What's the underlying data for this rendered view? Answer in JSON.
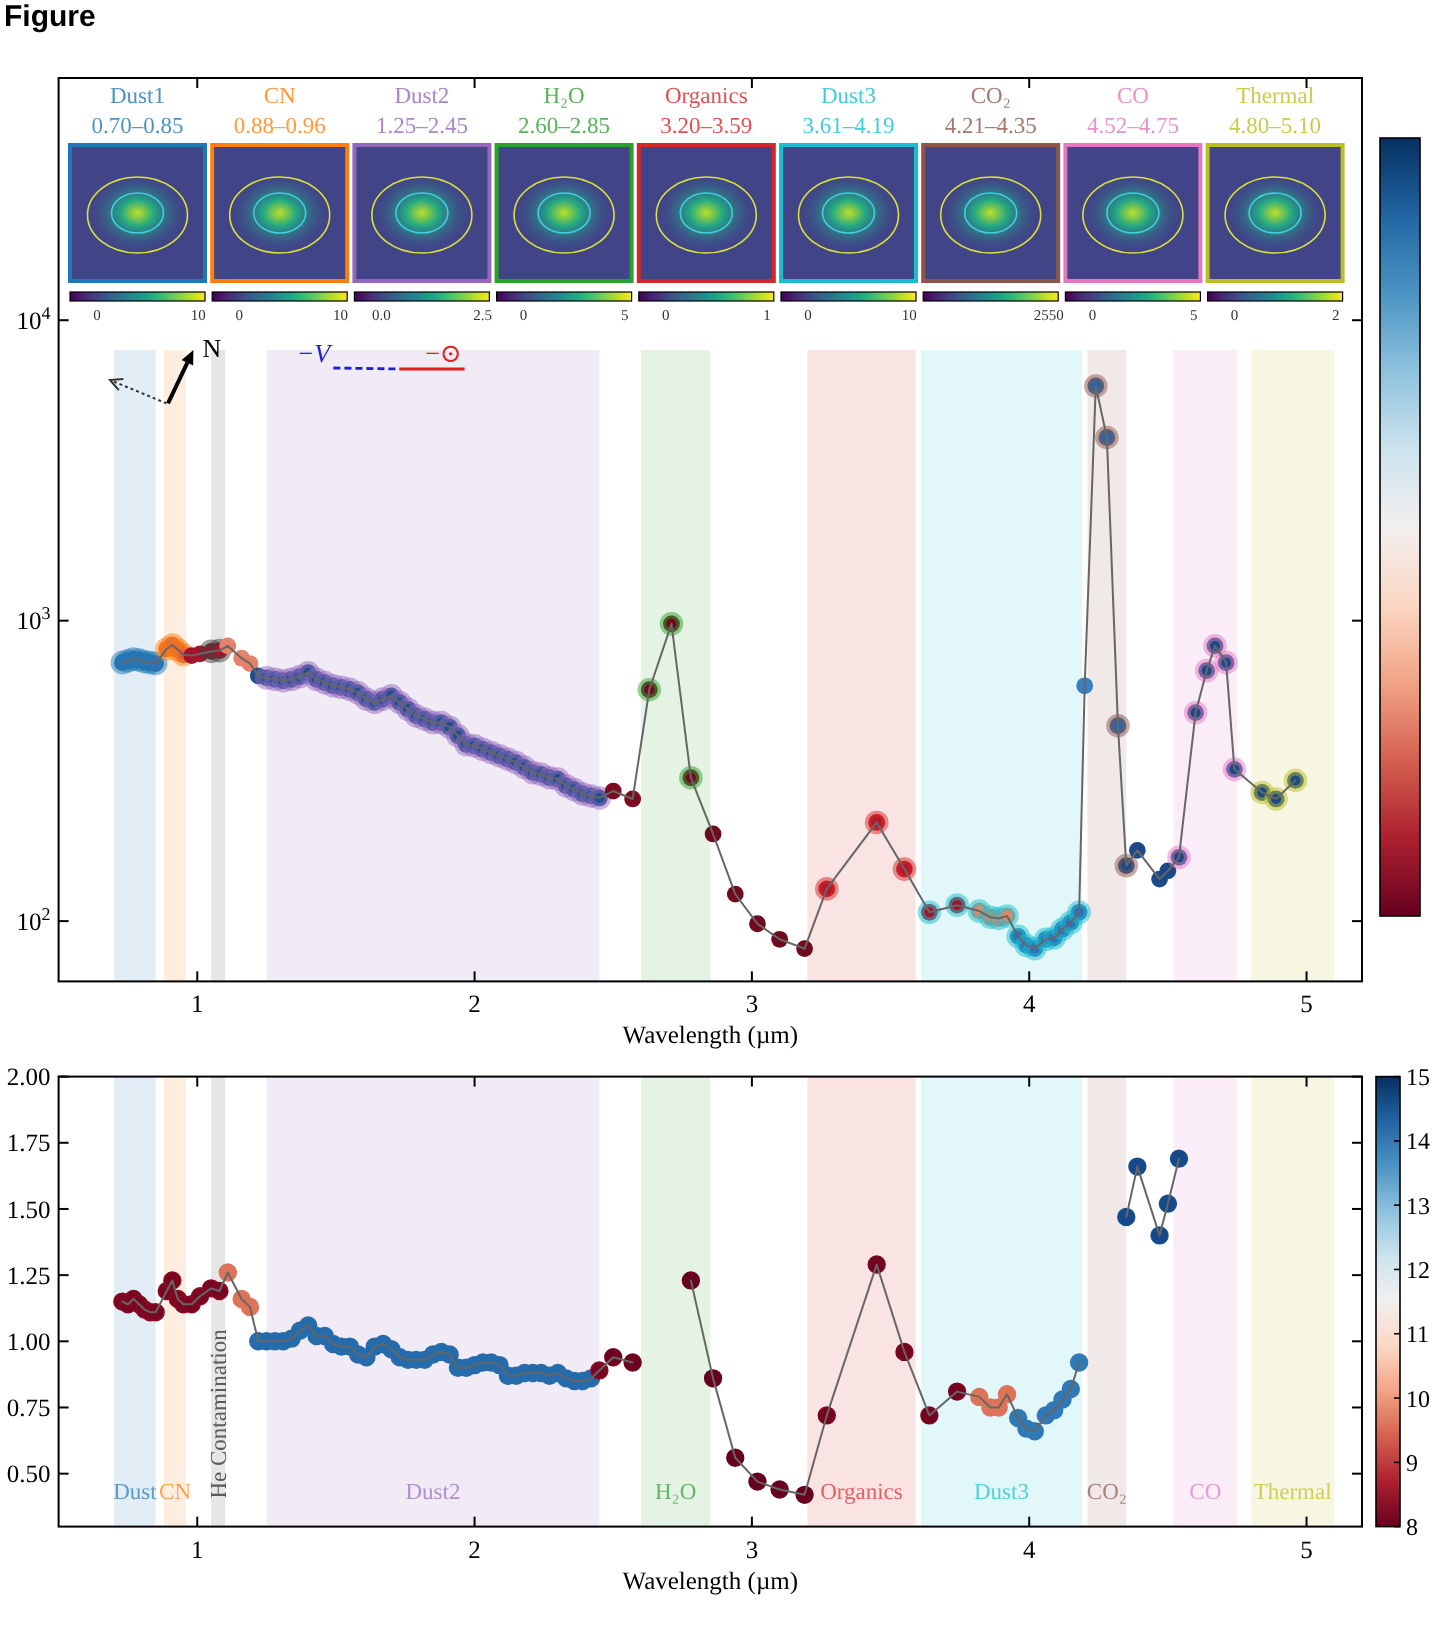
{
  "chart_data": [
    {
      "type": "line",
      "title": "Figure",
      "xlabel": "Wavelength (µm)",
      "x": [
        0.73,
        0.75,
        0.77,
        0.79,
        0.81,
        0.83,
        0.85,
        0.89,
        0.91,
        0.93,
        0.95,
        0.98,
        1.01,
        1.05,
        1.08,
        1.11,
        1.16,
        1.19,
        1.22,
        1.25,
        1.28,
        1.31,
        1.34,
        1.37,
        1.4,
        1.43,
        1.46,
        1.49,
        1.52,
        1.55,
        1.58,
        1.61,
        1.64,
        1.67,
        1.7,
        1.73,
        1.76,
        1.79,
        1.82,
        1.85,
        1.88,
        1.91,
        1.94,
        1.97,
        2.0,
        2.03,
        2.06,
        2.09,
        2.12,
        2.15,
        2.18,
        2.21,
        2.24,
        2.27,
        2.3,
        2.33,
        2.36,
        2.39,
        2.42,
        2.45,
        2.5,
        2.57,
        2.63,
        2.71,
        2.78,
        2.86,
        2.94,
        3.02,
        3.1,
        3.19,
        3.27,
        3.45,
        3.55,
        3.64,
        3.74,
        3.82,
        3.86,
        3.89,
        3.92,
        3.96,
        3.99,
        4.02,
        4.06,
        4.09,
        4.12,
        4.15,
        4.18,
        4.2,
        4.24,
        4.28,
        4.32,
        4.35,
        4.39,
        4.47,
        4.5,
        4.54,
        4.6,
        4.64,
        4.67,
        4.71,
        4.74,
        4.84,
        4.89,
        4.96
      ],
      "series": [
        {
          "color": "#666666",
          "values": [
            725,
            735,
            745,
            740,
            730,
            725,
            720,
            805,
            830,
            800,
            770,
            765,
            775,
            790,
            795,
            824,
            750,
            720,
            655,
            645,
            638,
            631,
            638,
            651,
            671,
            638,
            622,
            607,
            600,
            591,
            575,
            548,
            534,
            548,
            562,
            534,
            507,
            482,
            470,
            458,
            458,
            442,
            414,
            387,
            383,
            373,
            364,
            355,
            346,
            337,
            325,
            312,
            308,
            300,
            297,
            282,
            274,
            265,
            261,
            257,
            271,
            255,
            589,
            976,
            300,
            195,
            123,
            98,
            87,
            81,
            128,
            213,
            149,
            107,
            113,
            108,
            103,
            102,
            104,
            89,
            83,
            81,
            87,
            88,
            94,
            99,
            107,
            607,
            6040,
            4070,
            447,
            153,
            172,
            138,
            147,
            163,
            494,
            682,
            824,
            725,
            320,
            268,
            255,
            294
          ],
          "colors": [
            "#3372b2",
            "#3372b2",
            "#3372b2",
            "#3372b2",
            "#3372b2",
            "#3372b2",
            "#3372b2",
            "#d9603e",
            "#d9603e",
            "#d9603e",
            "#d9603e",
            "#a3142a",
            "#a3142a",
            "#a3142a",
            "#a3142a",
            "#e4826a",
            "#e4826a",
            "#e4826a",
            "#1f4f8c",
            "#1f4f8c",
            "#1f4f8c",
            "#1f4f8c",
            "#1f4f8c",
            "#1f4f8c",
            "#1f4f8c",
            "#1f4f8c",
            "#1f4f8c",
            "#1f4f8c",
            "#1f4f8c",
            "#1f4f8c",
            "#1f4f8c",
            "#1f4f8c",
            "#1f4f8c",
            "#1f4f8c",
            "#1f4f8c",
            "#1f4f8c",
            "#1f4f8c",
            "#1f4f8c",
            "#1f4f8c",
            "#1f4f8c",
            "#1f4f8c",
            "#1f4f8c",
            "#1f4f8c",
            "#1f4f8c",
            "#1f4f8c",
            "#1f4f8c",
            "#1f4f8c",
            "#1f4f8c",
            "#1f4f8c",
            "#1f4f8c",
            "#1f4f8c",
            "#1f4f8c",
            "#1f4f8c",
            "#1f4f8c",
            "#1f4f8c",
            "#1f4f8c",
            "#1f4f8c",
            "#1f4f8c",
            "#1f4f8c",
            "#1f4f8c",
            "#7a0b22",
            "#7a0b22",
            "#6f0a1f",
            "#6f0a1f",
            "#6f0a1f",
            "#6f0a1f",
            "#6f0a1f",
            "#6f0a1f",
            "#6f0a1f",
            "#6f0a1f",
            "#b4182b",
            "#b4182b",
            "#b4182b",
            "#a3142a",
            "#a3142a",
            "#e08a6d",
            "#e08a6d",
            "#e08a6d",
            "#e08a6d",
            "#2e72b5",
            "#2e72b5",
            "#2e72b5",
            "#2e72b5",
            "#2e72b5",
            "#2e72b5",
            "#2e72b5",
            "#2e72b5",
            "#3a7fbf",
            "#2a66a5",
            "#2a66a5",
            "#2a66a5",
            "#1d4a86",
            "#1d4a86",
            "#1d4a86",
            "#1d4a86",
            "#1d4a86",
            "#1d4a86",
            "#1d4a86",
            "#1d4a86",
            "#1d4a86",
            "#1d4a86",
            "#1d4a86",
            "#1d4a86",
            "#1d4a86"
          ]
        }
      ],
      "xlim": [
        0.5,
        5.2
      ],
      "ylim": [
        63,
        64000
      ],
      "xticks": [
        1,
        2,
        3,
        4,
        5
      ],
      "yticks": [
        {
          "value": 100,
          "label": "10$^{2}$"
        },
        {
          "value": 1000,
          "label": "10$^{3}$"
        },
        {
          "value": 10000,
          "label": "10$^{4}$"
        }
      ],
      "log": "y",
      "marker": "circle",
      "bands": [
        {
          "axis": "x",
          "from": 0.7,
          "to": 0.85,
          "color": "#1f77b4"
        },
        {
          "axis": "x",
          "from": 0.88,
          "to": 0.96,
          "color": "#ff7f0e"
        },
        {
          "axis": "x",
          "from": 1.05,
          "to": 1.1,
          "color": "#404040"
        },
        {
          "axis": "x",
          "from": 1.25,
          "to": 2.45,
          "color": "#9467bd"
        },
        {
          "axis": "x",
          "from": 2.6,
          "to": 2.85,
          "color": "#2ca02c"
        },
        {
          "axis": "x",
          "from": 3.2,
          "to": 3.59,
          "color": "#d62728"
        },
        {
          "axis": "x",
          "from": 3.61,
          "to": 4.19,
          "color": "#17becf"
        },
        {
          "axis": "x",
          "from": 4.21,
          "to": 4.35,
          "color": "#8c564b"
        },
        {
          "axis": "x",
          "from": 4.52,
          "to": 4.75,
          "color": "#e377c2"
        },
        {
          "axis": "x",
          "from": 4.8,
          "to": 5.1,
          "color": "#bcbd22"
        }
      ],
      "annotations": [
        {
          "text": "N",
          "x": 0.99,
          "y": 8000
        },
        "−V",
        "−⊙"
      ]
    },
    {
      "type": "other",
      "title": "Dust1",
      "subtitle": "0.70–0.85",
      "color": "#1f77b4",
      "annotations": [
        "0",
        "10"
      ]
    },
    {
      "type": "other",
      "title": "CN",
      "subtitle": "0.88–0.96",
      "color": "#ff7f0e",
      "annotations": [
        "0",
        "10"
      ]
    },
    {
      "type": "other",
      "title": "Dust2",
      "subtitle": "1.25–2.45",
      "color": "#9467bd",
      "annotations": [
        "0.0",
        "2.5"
      ]
    },
    {
      "type": "other",
      "title": "H₂O",
      "subtitle": "2.60–2.85",
      "color": "#2ca02c",
      "annotations": [
        "0",
        "5"
      ]
    },
    {
      "type": "other",
      "title": "Organics",
      "subtitle": "3.20–3.59",
      "color": "#d62728",
      "annotations": [
        "0",
        "1"
      ]
    },
    {
      "type": "other",
      "title": "Dust3",
      "subtitle": "3.61–4.19",
      "color": "#17becf",
      "annotations": [
        "0",
        "10"
      ]
    },
    {
      "type": "other",
      "title": "CO₂",
      "subtitle": "4.21–4.35",
      "color": "#8c564b",
      "annotations": [
        "2550"
      ]
    },
    {
      "type": "other",
      "title": "CO",
      "subtitle": "4.52–4.75",
      "color": "#e377c2",
      "annotations": [
        "0",
        "5"
      ]
    },
    {
      "type": "other",
      "title": "Thermal",
      "subtitle": "4.80–5.10",
      "color": "#bcbd22",
      "annotations": [
        "0",
        "2"
      ]
    },
    {
      "type": "scatter",
      "xlabel": "Wavelength (µm)",
      "series": [
        {
          "type": "line",
          "marker": "none",
          "color": "#666666",
          "x": [
            0.73,
            0.75,
            0.77,
            0.79,
            0.81,
            0.83,
            0.85,
            0.89,
            0.91,
            0.93,
            0.95,
            0.98,
            1.01,
            1.05,
            1.08,
            1.11,
            1.16,
            1.19,
            1.22,
            1.25,
            1.28,
            1.31,
            1.34,
            1.37,
            1.4,
            1.43,
            1.46,
            1.49,
            1.52,
            1.55,
            1.58,
            1.61,
            1.64,
            1.67,
            1.7,
            1.73,
            1.76,
            1.79,
            1.82,
            1.85,
            1.88,
            1.91,
            1.94,
            1.97,
            2.0,
            2.03,
            2.06,
            2.09,
            2.12,
            2.15,
            2.18,
            2.21,
            2.24,
            2.27,
            2.3,
            2.33,
            2.36,
            2.39,
            2.42,
            2.45,
            2.5,
            2.57
          ],
          "values": [
            1.15,
            1.14,
            1.16,
            1.14,
            1.12,
            1.11,
            1.11,
            1.19,
            1.23,
            1.16,
            1.14,
            1.14,
            1.17,
            1.2,
            1.19,
            1.26,
            1.16,
            1.13,
            1.0,
            1.0,
            1.0,
            1.0,
            1.01,
            1.04,
            1.06,
            1.02,
            1.02,
            0.99,
            0.98,
            0.98,
            0.95,
            0.94,
            0.98,
            0.99,
            0.97,
            0.94,
            0.93,
            0.93,
            0.93,
            0.95,
            0.96,
            0.95,
            0.9,
            0.9,
            0.91,
            0.92,
            0.92,
            0.91,
            0.87,
            0.87,
            0.88,
            0.88,
            0.88,
            0.87,
            0.88,
            0.86,
            0.85,
            0.85,
            0.86,
            0.89,
            0.94,
            0.92
          ]
        },
        {
          "type": "line",
          "marker": "none",
          "color": "#666666",
          "x": [
            2.78,
            2.86,
            2.94,
            3.02,
            3.1,
            3.19,
            3.27,
            3.45,
            3.55,
            3.64,
            3.74,
            3.82,
            3.86,
            3.89,
            3.92,
            3.96,
            3.99,
            4.02,
            4.06,
            4.09,
            4.12,
            4.15,
            4.18
          ],
          "values": [
            1.23,
            0.86,
            0.56,
            0.47,
            0.44,
            0.42,
            0.72,
            1.29,
            0.96,
            0.72,
            0.81,
            0.79,
            0.75,
            0.75,
            0.8,
            0.71,
            0.67,
            0.66,
            0.72,
            0.74,
            0.78,
            0.82,
            0.92
          ]
        },
        {
          "type": "line",
          "marker": "none",
          "color": "#666666",
          "x": [
            4.35,
            4.39,
            4.47,
            4.5,
            4.54
          ],
          "values": [
            1.47,
            1.66,
            1.4,
            1.52,
            1.69
          ]
        },
        {
          "x": [
            0.73,
            0.75,
            0.77,
            0.79,
            0.81,
            0.83,
            0.85,
            0.89,
            0.91,
            0.93,
            0.95,
            0.98,
            1.01,
            1.05,
            1.08,
            1.11,
            1.16,
            1.19,
            1.22,
            1.25,
            1.28,
            1.31,
            1.34,
            1.37,
            1.4,
            1.43,
            1.46,
            1.49,
            1.52,
            1.55,
            1.58,
            1.61,
            1.64,
            1.67,
            1.7,
            1.73,
            1.76,
            1.79,
            1.82,
            1.85,
            1.88,
            1.91,
            1.94,
            1.97,
            2.0,
            2.03,
            2.06,
            2.09,
            2.12,
            2.15,
            2.18,
            2.21,
            2.24,
            2.27,
            2.3,
            2.33,
            2.36,
            2.39,
            2.42,
            2.45,
            2.5,
            2.57,
            2.78,
            2.86,
            2.94,
            3.02,
            3.1,
            3.19,
            3.27,
            3.45,
            3.55,
            3.64,
            3.74,
            3.82,
            3.86,
            3.89,
            3.92,
            3.96,
            3.99,
            4.02,
            4.06,
            4.09,
            4.12,
            4.15,
            4.18,
            4.35,
            4.39,
            4.47,
            4.5,
            4.54
          ],
          "values": [
            1.15,
            1.14,
            1.16,
            1.14,
            1.12,
            1.11,
            1.11,
            1.19,
            1.23,
            1.16,
            1.14,
            1.14,
            1.17,
            1.2,
            1.19,
            1.26,
            1.16,
            1.13,
            1.0,
            1.0,
            1.0,
            1.0,
            1.01,
            1.04,
            1.06,
            1.02,
            1.02,
            0.99,
            0.98,
            0.98,
            0.95,
            0.94,
            0.98,
            0.99,
            0.97,
            0.94,
            0.93,
            0.93,
            0.93,
            0.95,
            0.96,
            0.95,
            0.9,
            0.9,
            0.91,
            0.92,
            0.92,
            0.91,
            0.87,
            0.87,
            0.88,
            0.88,
            0.88,
            0.87,
            0.88,
            0.86,
            0.85,
            0.85,
            0.86,
            0.89,
            0.94,
            0.92,
            1.23,
            0.86,
            0.56,
            0.47,
            0.44,
            0.42,
            0.72,
            1.29,
            0.96,
            0.72,
            0.81,
            0.79,
            0.75,
            0.75,
            0.8,
            0.71,
            0.67,
            0.66,
            0.72,
            0.74,
            0.78,
            0.82,
            0.92,
            1.47,
            1.66,
            1.4,
            1.52,
            1.69
          ],
          "cvalues": [
            8.3,
            8.3,
            8.3,
            8.3,
            8.3,
            8.3,
            8.3,
            8.3,
            8.3,
            8.3,
            8.3,
            8.3,
            8.3,
            8.3,
            8.3,
            9.6,
            9.6,
            9.6,
            14.2,
            14.2,
            14.2,
            14.2,
            14.2,
            14.2,
            14.2,
            14.2,
            14.2,
            14.2,
            14.2,
            14.2,
            14.2,
            14.2,
            14.2,
            14.2,
            14.2,
            14.2,
            14.2,
            14.2,
            14.2,
            14.2,
            14.2,
            14.2,
            14.2,
            14.2,
            14.2,
            14.2,
            14.2,
            14.2,
            14.2,
            14.2,
            14.2,
            14.2,
            14.2,
            14.2,
            14.2,
            14.2,
            14.2,
            14.2,
            14.2,
            8.3,
            8.1,
            8.1,
            8.0,
            8.0,
            8.0,
            8.0,
            8.0,
            8.0,
            8.2,
            8.2,
            8.2,
            8.2,
            8.2,
            9.6,
            9.6,
            9.6,
            9.6,
            14.0,
            14.0,
            14.0,
            14.0,
            14.0,
            14.0,
            14.0,
            14.0,
            14.6,
            14.6,
            14.6,
            14.6,
            14.6
          ],
          "colors": [
            "#790520",
            "#790520",
            "#790520",
            "#790520",
            "#790520",
            "#790520",
            "#790520",
            "#790520",
            "#790520",
            "#790520",
            "#790520",
            "#790520",
            "#790520",
            "#790520",
            "#790520",
            "#de7358",
            "#de7358",
            "#de7358",
            "#256cad",
            "#256cad",
            "#256cad",
            "#256cad",
            "#256cad",
            "#256cad",
            "#256cad",
            "#256cad",
            "#256cad",
            "#256cad",
            "#256cad",
            "#256cad",
            "#256cad",
            "#256cad",
            "#256cad",
            "#256cad",
            "#256cad",
            "#256cad",
            "#256cad",
            "#256cad",
            "#256cad",
            "#256cad",
            "#256cad",
            "#256cad",
            "#256cad",
            "#256cad",
            "#256cad",
            "#256cad",
            "#256cad",
            "#256cad",
            "#256cad",
            "#256cad",
            "#256cad",
            "#256cad",
            "#256cad",
            "#256cad",
            "#256cad",
            "#256cad",
            "#256cad",
            "#256cad",
            "#256cad",
            "#790520",
            "#6d011f",
            "#6d011f",
            "#67001f",
            "#67001f",
            "#67001f",
            "#67001f",
            "#67001f",
            "#67001f",
            "#73031f",
            "#73031f",
            "#73031f",
            "#73031f",
            "#73031f",
            "#de7358",
            "#de7358",
            "#de7358",
            "#de7358",
            "#3079b7",
            "#3079b7",
            "#3079b7",
            "#3079b7",
            "#3079b7",
            "#3079b7",
            "#3079b7",
            "#3079b7",
            "#15498a",
            "#15498a",
            "#15498a",
            "#15498a",
            "#15498a"
          ]
        }
      ],
      "xlim": [
        0.5,
        5.2
      ],
      "ylim": [
        0.3,
        2.0
      ],
      "xticks": [
        1,
        2,
        3,
        4,
        5
      ],
      "yticks": [
        {
          "value": 0.5,
          "label": "0.50"
        },
        {
          "value": 0.75,
          "label": "0.75"
        },
        {
          "value": 1,
          "label": "1.00"
        },
        {
          "value": 1.25,
          "label": "1.25"
        },
        {
          "value": 1.5,
          "label": "1.50"
        },
        {
          "value": 1.75,
          "label": "1.75"
        },
        {
          "value": 2,
          "label": "2.00"
        }
      ],
      "clim": [
        8,
        15
      ],
      "cticks": [
        8,
        9,
        10,
        11,
        12,
        13,
        14,
        15
      ],
      "marker": "circle",
      "bands": [
        {
          "axis": "x",
          "from": 0.7,
          "to": 0.85,
          "color": "#1f77b4",
          "label": "Dust"
        },
        {
          "axis": "x",
          "from": 0.88,
          "to": 0.96,
          "color": "#ff7f0e",
          "label": "CN"
        },
        {
          "axis": "x",
          "from": 1.05,
          "to": 1.1,
          "color": "#404040",
          "label": "He Contamination"
        },
        {
          "axis": "x",
          "from": 1.25,
          "to": 2.45,
          "color": "#9467bd",
          "label": "Dust2"
        },
        {
          "axis": "x",
          "from": 2.6,
          "to": 2.85,
          "color": "#2ca02c",
          "label": "H₂O"
        },
        {
          "axis": "x",
          "from": 3.2,
          "to": 3.59,
          "color": "#d62728",
          "label": "Organics"
        },
        {
          "axis": "x",
          "from": 3.61,
          "to": 4.19,
          "color": "#17becf",
          "label": "Dust3"
        },
        {
          "axis": "x",
          "from": 4.21,
          "to": 4.35,
          "color": "#8c564b",
          "label": "CO₂"
        },
        {
          "axis": "x",
          "from": 4.52,
          "to": 4.75,
          "color": "#e377c2",
          "label": "CO"
        },
        {
          "axis": "x",
          "from": 4.8,
          "to": 5.1,
          "color": "#bcbd22",
          "label": "Thermal"
        }
      ]
    }
  ]
}
